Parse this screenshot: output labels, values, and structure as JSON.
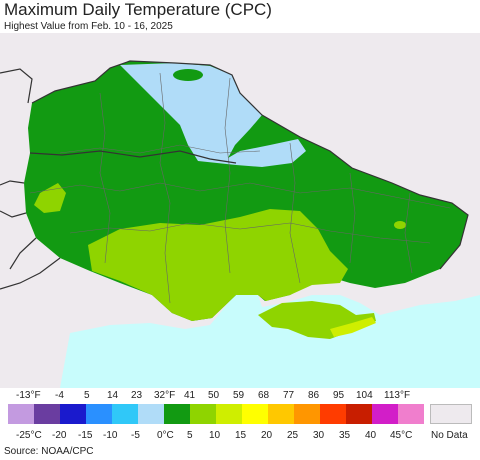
{
  "header": {
    "title": "Maximum Daily Temperature (CPC)",
    "subtitle": "Highest Value from Feb. 10 - 16, 2025"
  },
  "legend": {
    "fahrenheit_labels": [
      "-13°F",
      "-4",
      "5",
      "14",
      "23",
      "32°F",
      "41",
      "50",
      "59",
      "68",
      "77",
      "86",
      "95",
      "104",
      "113°F"
    ],
    "celsius_labels": [
      "-25°C",
      "-20",
      "-15",
      "-10",
      "-5",
      "0°C",
      "5",
      "10",
      "15",
      "20",
      "25",
      "30",
      "35",
      "40",
      "45°C"
    ],
    "colors": [
      "#c39ae0",
      "#6a3da0",
      "#1a1acd",
      "#2a90ff",
      "#30c8f8",
      "#b0dcf8",
      "#129a12",
      "#8fd400",
      "#cfee00",
      "#ffff00",
      "#ffc800",
      "#ff9600",
      "#ff3c00",
      "#c81e00",
      "#d21ec8",
      "#f07ecd"
    ],
    "nodata_label": "No Data",
    "nodata_color": "#eeeaee"
  },
  "map_colors": {
    "land_nodata": "#eeeaee",
    "sea": "#c8fcfc",
    "dark_green": "#129a12",
    "light_green": "#8fd400",
    "lime": "#cfee00",
    "light_blue": "#b0dcf8"
  },
  "source": "Source: NOAA/CPC"
}
